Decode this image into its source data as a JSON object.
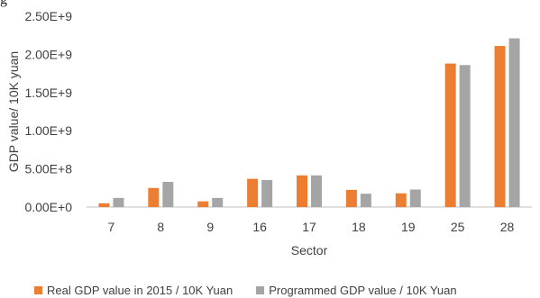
{
  "partial_title": "g",
  "chart_data": {
    "type": "bar",
    "categories": [
      "7",
      "8",
      "9",
      "16",
      "17",
      "18",
      "19",
      "25",
      "28"
    ],
    "series": [
      {
        "name": "Real GDP value in 2015 / 10K Yuan",
        "color": "#ED7D31",
        "values": [
          50000000,
          250000000,
          75000000,
          370000000,
          415000000,
          225000000,
          180000000,
          1880000000,
          2110000000
        ]
      },
      {
        "name": "Programmed GDP value / 10K Yuan",
        "color": "#A5A5A5",
        "values": [
          120000000,
          330000000,
          120000000,
          355000000,
          415000000,
          175000000,
          230000000,
          1860000000,
          2210000000
        ]
      }
    ],
    "xlabel": "Sector",
    "ylabel": "GDP value/ 10K yuan",
    "ylim": [
      0,
      2500000000
    ],
    "yticks": [
      0,
      500000000,
      1000000000,
      1500000000,
      2000000000,
      2500000000
    ],
    "ytick_labels": [
      "0.00E+0",
      "5.00E+8",
      "1.00E+9",
      "1.50E+9",
      "2.00E+9",
      "2.50E+9"
    ],
    "grid": false,
    "legend_position": "bottom"
  }
}
